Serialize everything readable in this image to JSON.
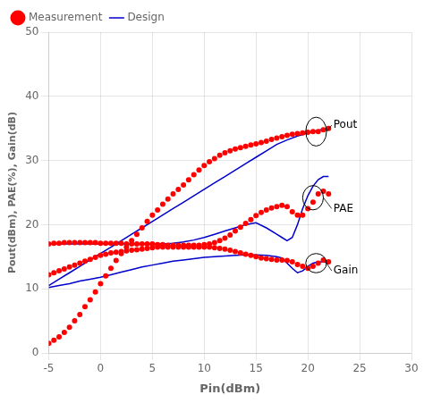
{
  "chart_data": {
    "type": "scatter",
    "xlabel": "Pin(dBm)",
    "ylabel": "Pout(dBm), PAE(%), Gain(dB)",
    "xlim": [
      -5,
      30
    ],
    "ylim": [
      0,
      50
    ],
    "xticks": [
      -5,
      0,
      5,
      10,
      15,
      20,
      25,
      30
    ],
    "yticks": [
      0,
      10,
      20,
      30,
      40,
      50
    ],
    "grid": true,
    "legend": "upper left",
    "series": [
      {
        "name": "Measurement",
        "type": "scatter",
        "marker": "circle",
        "color": "#ff0000",
        "x": [
          -5,
          -4.5,
          -4,
          -3.5,
          -3,
          -2.5,
          -2,
          -1.5,
          -1,
          -0.5,
          0,
          0.5,
          1,
          1.5,
          2,
          2.5,
          3,
          3.5,
          4,
          4.5,
          5,
          5.5,
          6,
          6.5,
          7,
          7.5,
          8,
          8.5,
          9,
          9.5,
          10,
          10.5,
          11,
          11.5,
          12,
          12.5,
          13,
          13.5,
          14,
          14.5,
          15,
          15.5,
          16,
          16.5,
          17,
          17.5,
          18,
          18.5,
          19,
          19.5,
          20,
          20.5,
          21,
          21.5,
          22
        ],
        "values": [
          1.5,
          2.0,
          2.5,
          3.2,
          4.0,
          5.0,
          6.0,
          7.2,
          8.3,
          9.5,
          10.8,
          12.0,
          13.2,
          14.4,
          15.5,
          16.5,
          17.5,
          18.5,
          19.5,
          20.5,
          21.5,
          22.3,
          23.2,
          24.0,
          24.8,
          25.5,
          26.2,
          27.0,
          27.8,
          28.5,
          29.2,
          29.8,
          30.3,
          30.8,
          31.2,
          31.5,
          31.8,
          32.0,
          32.2,
          32.4,
          32.6,
          32.8,
          33.0,
          33.3,
          33.5,
          33.7,
          33.9,
          34.1,
          34.2,
          34.3,
          34.4,
          34.5,
          34.5,
          34.8,
          35.0
        ]
      },
      {
        "name": "Measurement",
        "type": "scatter",
        "marker": "circle",
        "color": "#ff0000",
        "x": [
          -5,
          -4.5,
          -4,
          -3.5,
          -3,
          -2.5,
          -2,
          -1.5,
          -1,
          -0.5,
          0,
          0.5,
          1,
          1.5,
          2,
          2.5,
          3,
          3.5,
          4,
          4.5,
          5,
          5.5,
          6,
          6.5,
          7,
          7.5,
          8,
          8.5,
          9,
          9.5,
          10,
          10.5,
          11,
          11.5,
          12,
          12.5,
          13,
          13.5,
          14,
          14.5,
          15,
          15.5,
          16,
          16.5,
          17,
          17.5,
          18,
          18.5,
          19,
          19.5,
          20,
          20.5,
          21,
          21.5,
          22
        ],
        "values": [
          17.0,
          17.1,
          17.1,
          17.2,
          17.2,
          17.2,
          17.2,
          17.2,
          17.2,
          17.2,
          17.1,
          17.1,
          17.1,
          17.1,
          17.1,
          17.0,
          17.0,
          17.0,
          17.0,
          17.0,
          17.0,
          16.9,
          16.9,
          16.8,
          16.8,
          16.8,
          16.8,
          16.8,
          16.8,
          16.8,
          16.9,
          17.0,
          17.2,
          17.5,
          17.9,
          18.4,
          19.0,
          19.6,
          20.2,
          20.8,
          21.4,
          21.9,
          22.3,
          22.6,
          22.8,
          23.0,
          22.8,
          22.0,
          21.5,
          21.5,
          22.5,
          23.5,
          24.8,
          25.2,
          24.8
        ]
      },
      {
        "name": "Measurement",
        "type": "scatter",
        "marker": "circle",
        "color": "#ff0000",
        "x": [
          -5,
          -4.5,
          -4,
          -3.5,
          -3,
          -2.5,
          -2,
          -1.5,
          -1,
          -0.5,
          0,
          0.5,
          1,
          1.5,
          2,
          2.5,
          3,
          3.5,
          4,
          4.5,
          5,
          5.5,
          6,
          6.5,
          7,
          7.5,
          8,
          8.5,
          9,
          9.5,
          10,
          10.5,
          11,
          11.5,
          12,
          12.5,
          13,
          13.5,
          14,
          14.5,
          15,
          15.5,
          16,
          16.5,
          17,
          17.5,
          18,
          18.5,
          19,
          19.5,
          20,
          20.5,
          21,
          21.5,
          22
        ],
        "values": [
          12.2,
          12.5,
          12.8,
          13.1,
          13.4,
          13.7,
          14.0,
          14.3,
          14.6,
          14.9,
          15.2,
          15.4,
          15.6,
          15.7,
          15.8,
          15.9,
          16.0,
          16.1,
          16.2,
          16.3,
          16.4,
          16.5,
          16.5,
          16.5,
          16.5,
          16.5,
          16.5,
          16.5,
          16.5,
          16.5,
          16.5,
          16.5,
          16.4,
          16.3,
          16.2,
          16.0,
          15.8,
          15.6,
          15.4,
          15.2,
          15.0,
          14.8,
          14.7,
          14.6,
          14.5,
          14.5,
          14.4,
          14.2,
          13.8,
          13.5,
          13.2,
          13.5,
          14.0,
          14.5,
          14.2
        ]
      },
      {
        "name": "Design",
        "type": "line",
        "line_style": "solid",
        "color": "#0000cc",
        "x": [
          -5,
          -4,
          -3,
          -2,
          -1,
          0,
          1,
          2,
          3,
          4,
          5,
          6,
          7,
          8,
          9,
          10,
          11,
          12,
          13,
          14,
          15,
          16,
          17,
          18,
          19,
          20,
          21,
          22
        ],
        "values": [
          10.5,
          11.5,
          12.5,
          13.5,
          14.5,
          15.5,
          16.5,
          17.5,
          18.5,
          19.5,
          20.5,
          21.5,
          22.5,
          23.5,
          24.5,
          25.5,
          26.5,
          27.5,
          28.5,
          29.5,
          30.5,
          31.5,
          32.5,
          33.2,
          33.8,
          34.3,
          34.7,
          35.0
        ]
      },
      {
        "name": "Design",
        "type": "line",
        "line_style": "solid",
        "color": "#0000cc",
        "x": [
          -5,
          -4,
          -3,
          -2,
          -1,
          0,
          1,
          2,
          3,
          4,
          5,
          6,
          7,
          8,
          9,
          10,
          11,
          12,
          13,
          14,
          15,
          16,
          17,
          17.5,
          18,
          18.5,
          19,
          19.5,
          20,
          20.5,
          21,
          21.5,
          22
        ],
        "values": [
          17.0,
          17.0,
          17.0,
          17.0,
          17.0,
          17.0,
          17.0,
          17.0,
          17.0,
          17.0,
          17.0,
          17.0,
          17.1,
          17.3,
          17.6,
          18.0,
          18.5,
          19.0,
          19.5,
          20.0,
          20.3,
          19.5,
          18.5,
          18.0,
          17.5,
          18.0,
          20.0,
          22.5,
          24.5,
          26.0,
          27.0,
          27.5,
          27.5
        ]
      },
      {
        "name": "Design",
        "type": "line",
        "line_style": "solid",
        "color": "#0000cc",
        "x": [
          -5,
          -4,
          -3,
          -2,
          -1,
          0,
          1,
          2,
          3,
          4,
          5,
          6,
          7,
          8,
          9,
          10,
          11,
          12,
          13,
          14,
          15,
          16,
          17,
          17.5,
          18,
          18.5,
          19,
          19.5,
          20,
          20.5,
          21,
          21.5,
          22
        ],
        "values": [
          10.2,
          10.5,
          10.8,
          11.2,
          11.5,
          11.8,
          12.2,
          12.6,
          13.0,
          13.4,
          13.7,
          14.0,
          14.3,
          14.5,
          14.7,
          14.9,
          15.0,
          15.1,
          15.2,
          15.3,
          15.3,
          15.2,
          15.0,
          14.8,
          14.0,
          13.2,
          12.5,
          12.8,
          13.5,
          14.0,
          14.2,
          14.2,
          14.0
        ]
      }
    ],
    "annotations": [
      {
        "text": "Pout",
        "x": 22.3,
        "y": 35.5,
        "ellipse": {
          "x": 20.8,
          "y": 34.5,
          "width": 2.0,
          "height": 4.5
        }
      },
      {
        "text": "PAE",
        "x": 22.3,
        "y": 22.5,
        "ellipse": {
          "x": 20.5,
          "y": 24.2,
          "width": 2.0,
          "height": 3.8
        }
      },
      {
        "text": "Gain",
        "x": 22.3,
        "y": 12.8,
        "ellipse": {
          "x": 20.8,
          "y": 14.0,
          "width": 2.0,
          "height": 3.0
        }
      }
    ]
  }
}
